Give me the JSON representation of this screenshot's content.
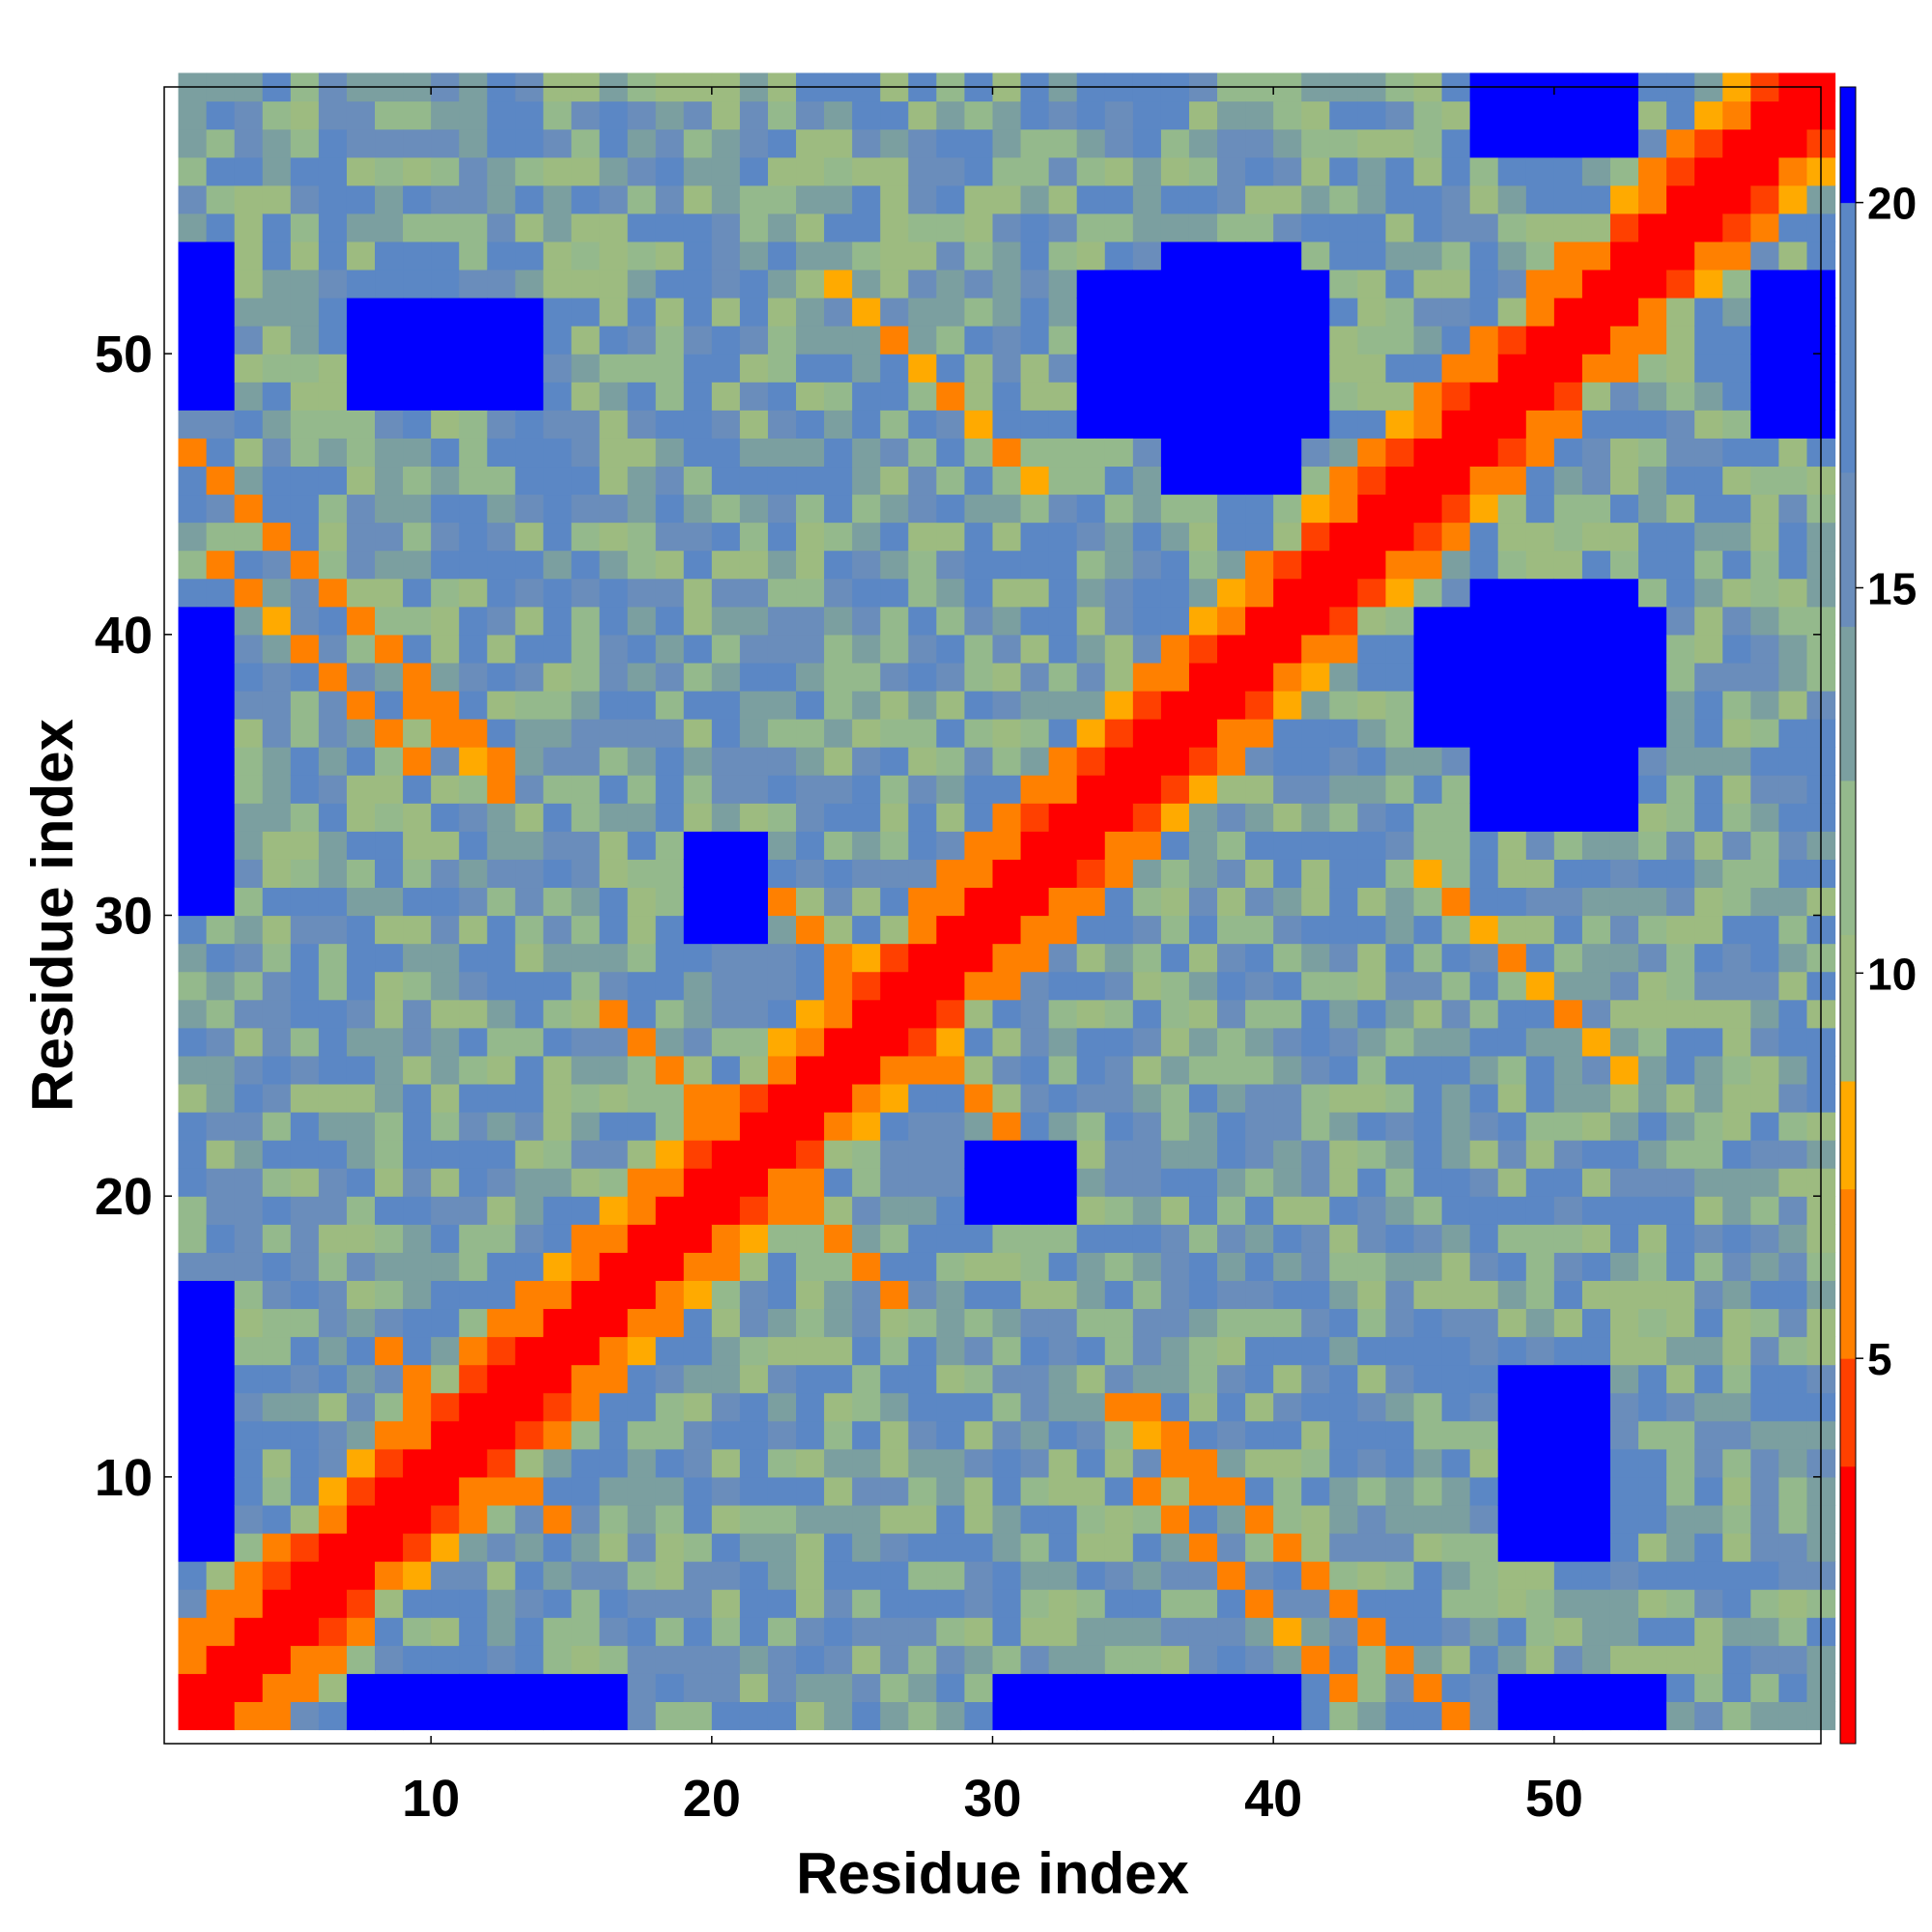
{
  "chart_data": {
    "type": "heatmap",
    "title": "",
    "xlabel": "Residue index",
    "ylabel": "Residue index",
    "x_range": [
      1,
      59
    ],
    "y_range": [
      1,
      59
    ],
    "n": 59,
    "x_ticks": [
      10,
      20,
      30,
      40,
      50
    ],
    "y_ticks": [
      10,
      20,
      30,
      40,
      50
    ],
    "colorbar": {
      "range": [
        0,
        21.5
      ],
      "ticks": [
        5,
        10,
        15,
        20
      ],
      "palette": [
        {
          "upto": 3.6,
          "color": "#ff0000"
        },
        {
          "upto": 5.0,
          "color": "#ff4000"
        },
        {
          "upto": 7.2,
          "color": "#ff8000"
        },
        {
          "upto": 8.6,
          "color": "#ffaa00"
        },
        {
          "upto": 10.5,
          "color": "#9dbb80"
        },
        {
          "upto": 12.5,
          "color": "#94b98c"
        },
        {
          "upto": 14.5,
          "color": "#7b9fa0"
        },
        {
          "upto": 16.5,
          "color": "#6a8dbb"
        },
        {
          "upto": 20.0,
          "color": "#5b87c5"
        },
        {
          "upto": 21.5,
          "color": "#0000ff"
        }
      ]
    },
    "matrix_description": "Symmetric residue-residue distance map (Å); near-zero diagonal, short contacts in red/orange, long distances in blue",
    "diagonal_value": 0,
    "contact_bands": [
      {
        "i": 2,
        "j": 42,
        "len": 8,
        "value": 6.5
      },
      {
        "i": 8,
        "j": 14,
        "len": 6,
        "value": 6.5
      },
      {
        "i": 16,
        "j": 26,
        "len": 6,
        "value": 6.0
      },
      {
        "i": 22,
        "j": 30,
        "len": 6,
        "value": 6.5
      },
      {
        "i": 1,
        "j": 46,
        "len": 12,
        "value": 6.0
      },
      {
        "i": 24,
        "j": 52,
        "len": 8,
        "value": 7.0
      },
      {
        "i": 34,
        "j": 12,
        "len": 4,
        "value": 6.5
      }
    ],
    "far_blocks": [
      {
        "x": [
          47,
          52
        ],
        "y": [
          33,
          41
        ],
        "value": 21
      },
      {
        "x": [
          36,
          40
        ],
        "y": [
          45,
          53
        ],
        "value": 21
      },
      {
        "x": [
          19,
          21
        ],
        "y": [
          29,
          31
        ],
        "value": 21
      },
      {
        "x": [
          30,
          32
        ],
        "y": [
          19,
          21
        ],
        "value": 21
      },
      {
        "x": [
          48,
          51
        ],
        "y": [
          7,
          13
        ],
        "value": 21
      },
      {
        "x": [
          1,
          2
        ],
        "y": [
          7,
          16
        ],
        "value": 21
      },
      {
        "x": [
          1,
          2
        ],
        "y": [
          30,
          40
        ],
        "value": 21
      },
      {
        "x": [
          8,
          14
        ],
        "y": [
          1,
          2
        ],
        "value": 21
      },
      {
        "x": [
          31,
          39
        ],
        "y": [
          1,
          2
        ],
        "value": 21
      },
      {
        "x": [
          47,
          52
        ],
        "y": [
          57,
          59
        ],
        "value": 21
      },
      {
        "x": [
          1,
          2
        ],
        "y": [
          48,
          53
        ],
        "value": 21
      }
    ]
  }
}
